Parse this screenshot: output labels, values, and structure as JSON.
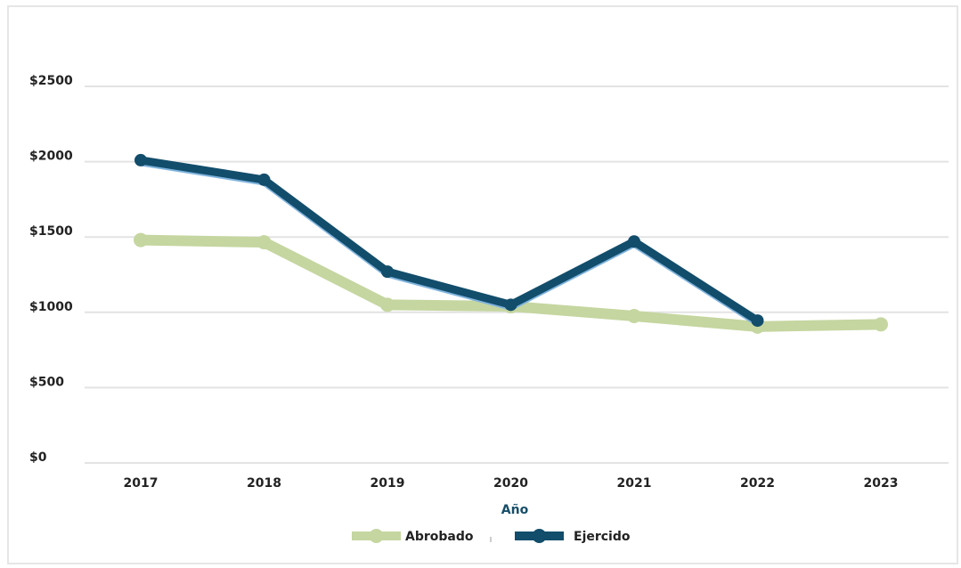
{
  "chart_data": {
    "type": "line",
    "categories": [
      "2017",
      "2018",
      "2019",
      "2020",
      "2021",
      "2022",
      "2023"
    ],
    "y_ticks": [
      "$0",
      "$500",
      "$1000",
      "$1500",
      "$2000",
      "$2500"
    ],
    "ylim": [
      0,
      2500
    ],
    "xlabel": "Año",
    "grid": true,
    "legend_position": "bottom",
    "series": [
      {
        "name": "Abrobado",
        "color": "#c5d6a0",
        "values": [
          1480,
          1465,
          1050,
          1040,
          975,
          905,
          920
        ]
      },
      {
        "name": "Ejercido",
        "color": "#124d6b",
        "values": [
          2010,
          1880,
          1270,
          1050,
          1470,
          945,
          null
        ]
      }
    ]
  }
}
